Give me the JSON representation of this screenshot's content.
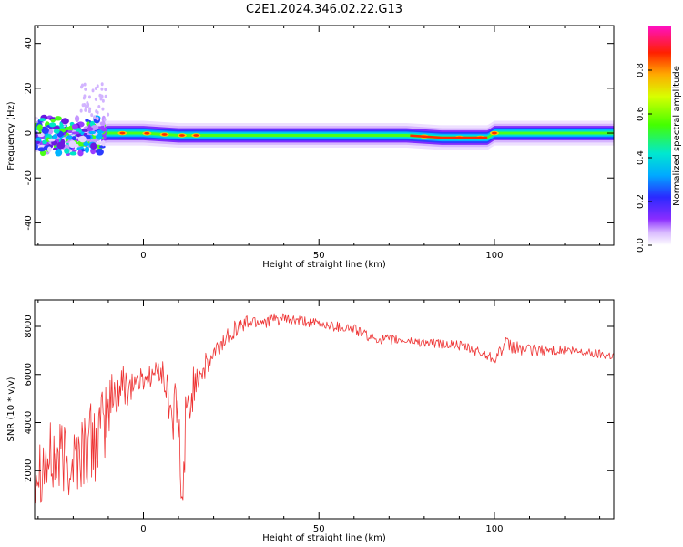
{
  "title": "C2E1.2024.346.02.22.G13",
  "colors": {
    "snr_line": "#ee3333",
    "frame": "#000000"
  },
  "colorbar": {
    "label": "Normalized spectral amplitude",
    "ticks": [
      "0.0",
      "0.2",
      "0.4",
      "0.6",
      "0.8"
    ],
    "tick_values": [
      0.0,
      0.2,
      0.4,
      0.6,
      0.8
    ],
    "range": [
      0,
      1
    ]
  },
  "chart_data": [
    {
      "type": "heatmap",
      "title": "",
      "xlabel": "Height of straight line (km)",
      "ylabel": "Frequency (Hz)",
      "xlim": [
        -31,
        134
      ],
      "ylim": [
        -50,
        48
      ],
      "xticks": [
        "0",
        "50",
        "100"
      ],
      "xtick_values": [
        0,
        50,
        100
      ],
      "yticks": [
        "40",
        "20",
        "0",
        "-20",
        "-40"
      ],
      "ytick_values": [
        40,
        20,
        0,
        -20,
        -40
      ],
      "colormap": "rainbow (purple=0 to magenta=1)",
      "ridge_center_hz": [
        [
          -31,
          0
        ],
        [
          -20,
          -2
        ],
        [
          -10,
          0
        ],
        [
          -5,
          0
        ],
        [
          0,
          0
        ],
        [
          10,
          -1
        ],
        [
          20,
          -1
        ],
        [
          50,
          -1
        ],
        [
          75,
          -1
        ],
        [
          85,
          -2
        ],
        [
          98,
          -2
        ],
        [
          100,
          0
        ],
        [
          110,
          0
        ],
        [
          134,
          0
        ]
      ],
      "hot_spots_km": [
        -6,
        1,
        6,
        11,
        15,
        80,
        90,
        96,
        100
      ]
    },
    {
      "type": "line",
      "title": "",
      "xlabel": "Height of straight line (km)",
      "ylabel": "SNR (10 * v/v)",
      "xlim": [
        -31,
        134
      ],
      "ylim": [
        0,
        9100
      ],
      "xticks": [
        "0",
        "50",
        "100"
      ],
      "xtick_values": [
        0,
        50,
        100
      ],
      "yticks": [
        "2000",
        "4000",
        "6000",
        "8000"
      ],
      "ytick_values": [
        2000,
        4000,
        6000,
        8000
      ],
      "grid": false,
      "envelope": {
        "x": [
          -31,
          -20,
          -12,
          -9,
          -6,
          0,
          5,
          8,
          10,
          11,
          12,
          15,
          18,
          20,
          25,
          30,
          40,
          50,
          60,
          65,
          75,
          90,
          100,
          103,
          110,
          120,
          134
        ],
        "mean": [
          2300,
          2500,
          3500,
          5000,
          5500,
          5800,
          6200,
          4500,
          4000,
          700,
          3800,
          6000,
          6300,
          6800,
          7800,
          8200,
          8300,
          8100,
          7900,
          7500,
          7400,
          7200,
          6700,
          7200,
          7000,
          7000,
          6800
        ],
        "noise": [
          1700,
          1700,
          1800,
          1400,
          1000,
          500,
          500,
          1300,
          1600,
          0,
          1500,
          800,
          600,
          500,
          400,
          350,
          250,
          200,
          250,
          200,
          200,
          200,
          250,
          350,
          250,
          200,
          200
        ]
      }
    }
  ]
}
